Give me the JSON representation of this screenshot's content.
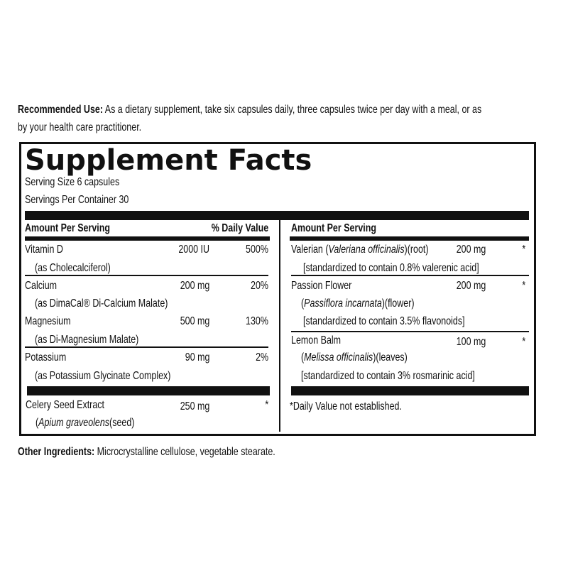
{
  "recommended_use": {
    "label": "Recommended Use:",
    "line1": "As a dietary supplement, take six capsules daily, three capsules twice per day with a meal, or as",
    "line2": "by your health care practitioner."
  },
  "facts": {
    "title": "Supplement Facts",
    "serving_size": "Serving Size 6 capsules",
    "servings_per_container": "Servings Per Container 30",
    "left_header": {
      "amount": "Amount Per Serving",
      "dv": "% Daily Value"
    },
    "right_header": {
      "amount": "Amount Per Serving"
    },
    "left_rows": [
      {
        "name": "Vitamin D",
        "amount": "2000 IU",
        "dv": "500%",
        "sub": "(as Cholecalciferol)"
      },
      {
        "name": "Calcium",
        "amount": "200 mg",
        "dv": "20%",
        "sub": "(as DimaCal® Di-Calcium Malate)"
      },
      {
        "name": "Magnesium",
        "amount": "500 mg",
        "dv": "130%",
        "sub": "(as Di-Magnesium Malate)"
      },
      {
        "name": "Potassium",
        "amount": "90 mg",
        "dv": "2%",
        "sub": "(as Potassium Glycinate Complex)"
      }
    ],
    "celery": {
      "name": "Celery Seed Extract",
      "amount": "250 mg",
      "dv": "*",
      "latin": "Apium graveolens",
      "part": "(seed)"
    },
    "right_rows": [
      {
        "name": "Valerian (",
        "latin": "Valeriana officinalis",
        "part": ")(root)",
        "amount": "200 mg",
        "dv": "*",
        "std": "[standardized to contain 0.8% valerenic acid]"
      },
      {
        "name": "Passion Flower",
        "latin": "Passiflora incarnata",
        "part": ")(flower)",
        "amount": "200 mg",
        "dv": "*",
        "std": "[standardized to contain 3.5% flavonoids]"
      },
      {
        "name": "Lemon Balm",
        "latin": "Melissa officinalis",
        "part": ")(leaves)",
        "amount": "100 mg",
        "dv": "*",
        "std": "[standardized to contain 3% rosmarinic acid]"
      }
    ],
    "footnote": "*Daily Value not established."
  },
  "other_ingredients": {
    "label": "Other Ingredients:",
    "text": "Microcrystalline cellulose, vegetable stearate."
  }
}
